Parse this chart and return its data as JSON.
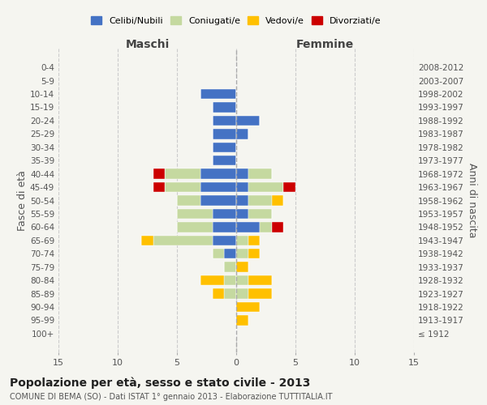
{
  "age_groups": [
    "100+",
    "95-99",
    "90-94",
    "85-89",
    "80-84",
    "75-79",
    "70-74",
    "65-69",
    "60-64",
    "55-59",
    "50-54",
    "45-49",
    "40-44",
    "35-39",
    "30-34",
    "25-29",
    "20-24",
    "15-19",
    "10-14",
    "5-9",
    "0-4"
  ],
  "birth_years": [
    "≤ 1912",
    "1913-1917",
    "1918-1922",
    "1923-1927",
    "1928-1932",
    "1933-1937",
    "1938-1942",
    "1943-1947",
    "1948-1952",
    "1953-1957",
    "1958-1962",
    "1963-1967",
    "1968-1972",
    "1973-1977",
    "1978-1982",
    "1983-1987",
    "1988-1992",
    "1993-1997",
    "1998-2002",
    "2003-2007",
    "2008-2012"
  ],
  "maschi": {
    "celibe": [
      0,
      0,
      0,
      0,
      0,
      0,
      1,
      2,
      2,
      2,
      3,
      3,
      3,
      2,
      2,
      2,
      2,
      2,
      3,
      0,
      0
    ],
    "coniugato": [
      0,
      0,
      0,
      1,
      1,
      1,
      1,
      5,
      3,
      3,
      2,
      3,
      3,
      0,
      0,
      0,
      0,
      0,
      0,
      0,
      0
    ],
    "vedovo": [
      0,
      0,
      0,
      1,
      2,
      0,
      0,
      1,
      0,
      0,
      0,
      0,
      0,
      0,
      0,
      0,
      0,
      0,
      0,
      0,
      0
    ],
    "divorziato": [
      0,
      0,
      0,
      0,
      0,
      0,
      0,
      0,
      0,
      0,
      0,
      1,
      1,
      0,
      0,
      0,
      0,
      0,
      0,
      0,
      0
    ]
  },
  "femmine": {
    "nubile": [
      0,
      0,
      0,
      0,
      0,
      0,
      0,
      0,
      2,
      1,
      1,
      1,
      1,
      0,
      0,
      1,
      2,
      0,
      0,
      0,
      0
    ],
    "coniugata": [
      0,
      0,
      0,
      1,
      1,
      0,
      1,
      1,
      1,
      2,
      2,
      3,
      2,
      0,
      0,
      0,
      0,
      0,
      0,
      0,
      0
    ],
    "vedova": [
      0,
      1,
      2,
      2,
      2,
      1,
      1,
      1,
      0,
      0,
      1,
      0,
      0,
      0,
      0,
      0,
      0,
      0,
      0,
      0,
      0
    ],
    "divorziata": [
      0,
      0,
      0,
      0,
      0,
      0,
      0,
      0,
      1,
      0,
      0,
      1,
      0,
      0,
      0,
      0,
      0,
      0,
      0,
      0,
      0
    ]
  },
  "colors": {
    "celibe": "#4472c4",
    "coniugato": "#c5d9a0",
    "vedovo": "#ffc000",
    "divorziato": "#cc0000"
  },
  "xlim": 15,
  "title": "Popolazione per età, sesso e stato civile - 2013",
  "subtitle": "COMUNE DI BEMA (SO) - Dati ISTAT 1° gennaio 2013 - Elaborazione TUTTITALIA.IT",
  "ylabel_left": "Fasce di età",
  "ylabel_right": "Anni di nascita",
  "xlabel_left": "Maschi",
  "xlabel_right": "Femmine",
  "bg_color": "#f5f5f0",
  "grid_color": "#cccccc"
}
